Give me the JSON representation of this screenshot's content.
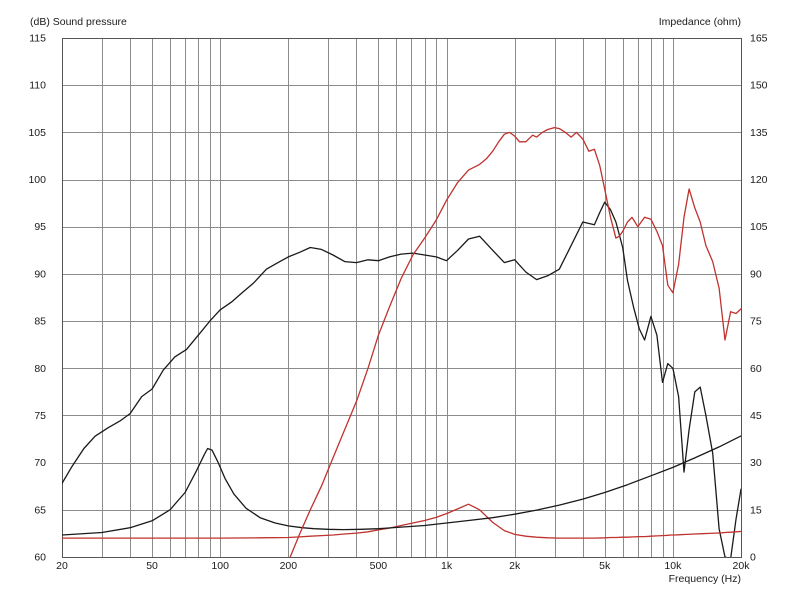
{
  "chart_data": {
    "type": "line",
    "title": "",
    "ylabel_left": "(dB)  Sound pressure",
    "ylabel_right": "Impedance  (ohm)",
    "xlabel": "Frequency  (Hz)",
    "x_scale": "log",
    "xlim": [
      20,
      20000
    ],
    "ylim_left": [
      60,
      115
    ],
    "ylim_right": [
      0,
      165
    ],
    "grid": true,
    "x_ticks": [
      {
        "v": 20,
        "label": "20"
      },
      {
        "v": 50,
        "label": "50"
      },
      {
        "v": 100,
        "label": "100"
      },
      {
        "v": 200,
        "label": "200"
      },
      {
        "v": 500,
        "label": "500"
      },
      {
        "v": 1000,
        "label": "1k"
      },
      {
        "v": 2000,
        "label": "2k"
      },
      {
        "v": 5000,
        "label": "5k"
      },
      {
        "v": 10000,
        "label": "10k"
      },
      {
        "v": 20000,
        "label": "20k"
      }
    ],
    "y_ticks_left": [
      "60",
      "65",
      "70",
      "75",
      "80",
      "85",
      "90",
      "95",
      "100",
      "105",
      "110",
      "115"
    ],
    "y_ticks_right": [
      "0",
      "15",
      "30",
      "45",
      "60",
      "75",
      "90",
      "105",
      "120",
      "135",
      "150",
      "165"
    ],
    "series": [
      {
        "axis": "left",
        "color": "#1a1a1a",
        "x": [
          20,
          22,
          25,
          28,
          32,
          36,
          40,
          45,
          50,
          56,
          63,
          71,
          80,
          90,
          100,
          112,
          125,
          140,
          160,
          180,
          200,
          225,
          250,
          280,
          315,
          355,
          400,
          450,
          500,
          560,
          630,
          710,
          800,
          900,
          1000,
          1120,
          1250,
          1400,
          1600,
          1800,
          2000,
          2240,
          2500,
          2800,
          3150,
          3550,
          4000,
          4500,
          4750,
          5000,
          5300,
          5600,
          6000,
          6300,
          6700,
          7100,
          7500,
          8000,
          8500,
          9000,
          9500,
          10000,
          10600,
          11200,
          11800,
          12500,
          13200,
          14000,
          15000,
          16000,
          17000,
          18000,
          19000,
          20000
        ],
        "y": [
          67.8,
          69.5,
          71.5,
          72.8,
          73.7,
          74.4,
          75.2,
          77.0,
          77.8,
          79.8,
          81.2,
          82.0,
          83.5,
          85.0,
          86.2,
          87.0,
          88.0,
          89.0,
          90.5,
          91.2,
          91.8,
          92.3,
          92.8,
          92.6,
          92.0,
          91.3,
          91.2,
          91.5,
          91.4,
          91.8,
          92.1,
          92.2,
          92.0,
          91.8,
          91.4,
          92.5,
          93.7,
          94.0,
          92.5,
          91.2,
          91.5,
          90.2,
          89.4,
          89.8,
          90.5,
          93.0,
          95.5,
          95.2,
          96.5,
          97.6,
          96.8,
          95.5,
          92.8,
          89.3,
          86.5,
          84.2,
          83.0,
          85.5,
          83.5,
          78.5,
          80.5,
          80.0,
          77.0,
          69.0,
          73.5,
          77.5,
          78.0,
          75.0,
          71.0,
          63.0,
          60.0,
          59.8,
          64.0,
          67.2
        ]
      },
      {
        "axis": "right",
        "color": "#c0322e",
        "x": [
          20,
          50,
          100,
          150,
          200,
          225,
          250,
          280,
          315,
          355,
          400,
          450,
          500,
          560,
          630,
          710,
          800,
          900,
          1000,
          1120,
          1250,
          1400,
          1600,
          1800,
          2000,
          2240,
          2500,
          2800,
          3150,
          3550,
          4000,
          4500,
          5000,
          5300,
          5600,
          6000,
          6300,
          6700,
          7100,
          7500,
          8000,
          8500,
          9000,
          9500,
          9800,
          10200,
          10800,
          11500,
          12500,
          13500,
          14500,
          15500,
          16500,
          17000,
          18000,
          19000,
          20000
        ],
        "y": [
          6.0,
          6.0,
          6.0,
          6.1,
          6.2,
          6.4,
          6.6,
          6.8,
          7.0,
          7.3,
          7.6,
          8.0,
          8.6,
          9.2,
          10.0,
          10.8,
          11.6,
          12.6,
          13.8,
          15.3,
          16.8,
          15.0,
          11.0,
          8.4,
          7.2,
          6.6,
          6.3,
          6.1,
          6.0,
          6.0,
          6.0,
          6.0,
          6.1,
          6.2,
          6.2,
          6.3,
          6.3,
          6.4,
          6.5,
          6.5,
          6.6,
          6.7,
          6.8,
          6.9,
          7.0,
          7.0,
          7.1,
          7.2,
          7.3,
          7.4,
          7.5,
          7.6,
          7.7,
          7.8,
          7.9,
          8.0,
          8.1
        ]
      },
      {
        "axis": "right",
        "color": "#1a1a1a",
        "x": [
          20,
          30,
          40,
          50,
          60,
          70,
          78,
          85,
          88,
          92,
          98,
          105,
          115,
          130,
          150,
          175,
          200,
          230,
          260,
          300,
          350,
          420,
          500,
          630,
          800,
          1000,
          1250,
          1600,
          2000,
          2500,
          3150,
          4000,
          5000,
          6300,
          8000,
          10000,
          12500,
          16000,
          20000
        ],
        "y": [
          7.0,
          7.8,
          9.3,
          11.5,
          15.0,
          20.5,
          27.0,
          32.5,
          34.5,
          34.0,
          30.0,
          25.0,
          20.0,
          15.5,
          12.5,
          10.8,
          9.9,
          9.3,
          9.0,
          8.8,
          8.7,
          8.8,
          9.0,
          9.5,
          10.0,
          10.8,
          11.6,
          12.5,
          13.6,
          14.9,
          16.5,
          18.4,
          20.5,
          23.0,
          25.8,
          28.5,
          31.5,
          35.0,
          38.5
        ]
      },
      {
        "axis": "left",
        "color": "#c0322e",
        "x": [
          200,
          225,
          250,
          280,
          315,
          355,
          400,
          450,
          500,
          560,
          630,
          710,
          800,
          900,
          1000,
          1120,
          1250,
          1400,
          1500,
          1600,
          1700,
          1800,
          1900,
          2000,
          2100,
          2240,
          2400,
          2500,
          2650,
          2800,
          3000,
          3150,
          3350,
          3550,
          3750,
          4000,
          4250,
          4500,
          4750,
          5000,
          5300,
          5600,
          5800,
          6000,
          6300,
          6600,
          7000,
          7500,
          8000,
          8500,
          9000,
          9500,
          10000,
          10600,
          11200,
          11800,
          12500,
          13200,
          14000,
          15000,
          16000,
          17000,
          18000,
          19000,
          20000
        ],
        "y": [
          59.5,
          62.5,
          65.0,
          67.5,
          70.5,
          73.5,
          76.5,
          80.0,
          83.5,
          86.5,
          89.5,
          92.0,
          93.8,
          95.7,
          97.8,
          99.7,
          101.0,
          101.6,
          102.2,
          103.0,
          104.0,
          104.8,
          105.0,
          104.6,
          104.0,
          104.0,
          104.7,
          104.5,
          105.0,
          105.3,
          105.5,
          105.4,
          105.0,
          104.5,
          105.0,
          104.3,
          103.0,
          103.2,
          101.5,
          99.0,
          96.0,
          93.8,
          94.0,
          94.5,
          95.5,
          96.0,
          95.0,
          96.0,
          95.8,
          94.5,
          93.0,
          88.8,
          88.0,
          91.0,
          96.0,
          99.0,
          97.0,
          95.5,
          93.0,
          91.3,
          88.5,
          83.0,
          86.0,
          85.8,
          86.3
        ]
      }
    ]
  }
}
